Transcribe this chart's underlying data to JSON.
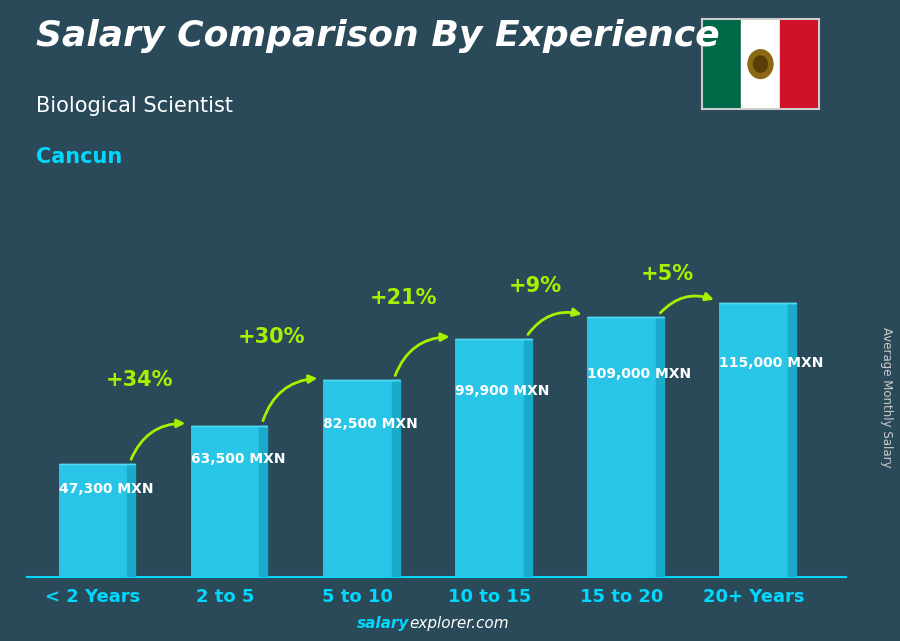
{
  "title": "Salary Comparison By Experience",
  "subtitle": "Biological Scientist",
  "city": "Cancun",
  "ylabel": "Average Monthly Salary",
  "watermark_bold": "salary",
  "watermark_normal": "explorer.com",
  "categories": [
    "< 2 Years",
    "2 to 5",
    "5 to 10",
    "10 to 15",
    "15 to 20",
    "20+ Years"
  ],
  "values": [
    47300,
    63500,
    82500,
    99900,
    109000,
    115000
  ],
  "value_labels": [
    "47,300 MXN",
    "63,500 MXN",
    "82,500 MXN",
    "99,900 MXN",
    "109,000 MXN",
    "115,000 MXN"
  ],
  "pct_labels": [
    "+34%",
    "+30%",
    "+21%",
    "+9%",
    "+5%"
  ],
  "bar_color_face": "#29c5e6",
  "bar_color_dark": "#1a7fa0",
  "bar_color_right": "#1aaaca",
  "bg_color": "#2a4a5a",
  "title_color": "#ffffff",
  "subtitle_color": "#ffffff",
  "city_color": "#00d8ff",
  "label_color": "#ffffff",
  "pct_color": "#aaee00",
  "xtick_color": "#00d8ff",
  "watermark_bold_color": "#00d8ff",
  "watermark_normal_color": "#ffffff",
  "ylabel_color": "#cccccc",
  "spine_color": "#00d8ff",
  "ylim": [
    0,
    140000
  ],
  "title_fontsize": 26,
  "subtitle_fontsize": 15,
  "city_fontsize": 15,
  "pct_fontsize": 15,
  "value_fontsize": 10,
  "xtick_fontsize": 13
}
